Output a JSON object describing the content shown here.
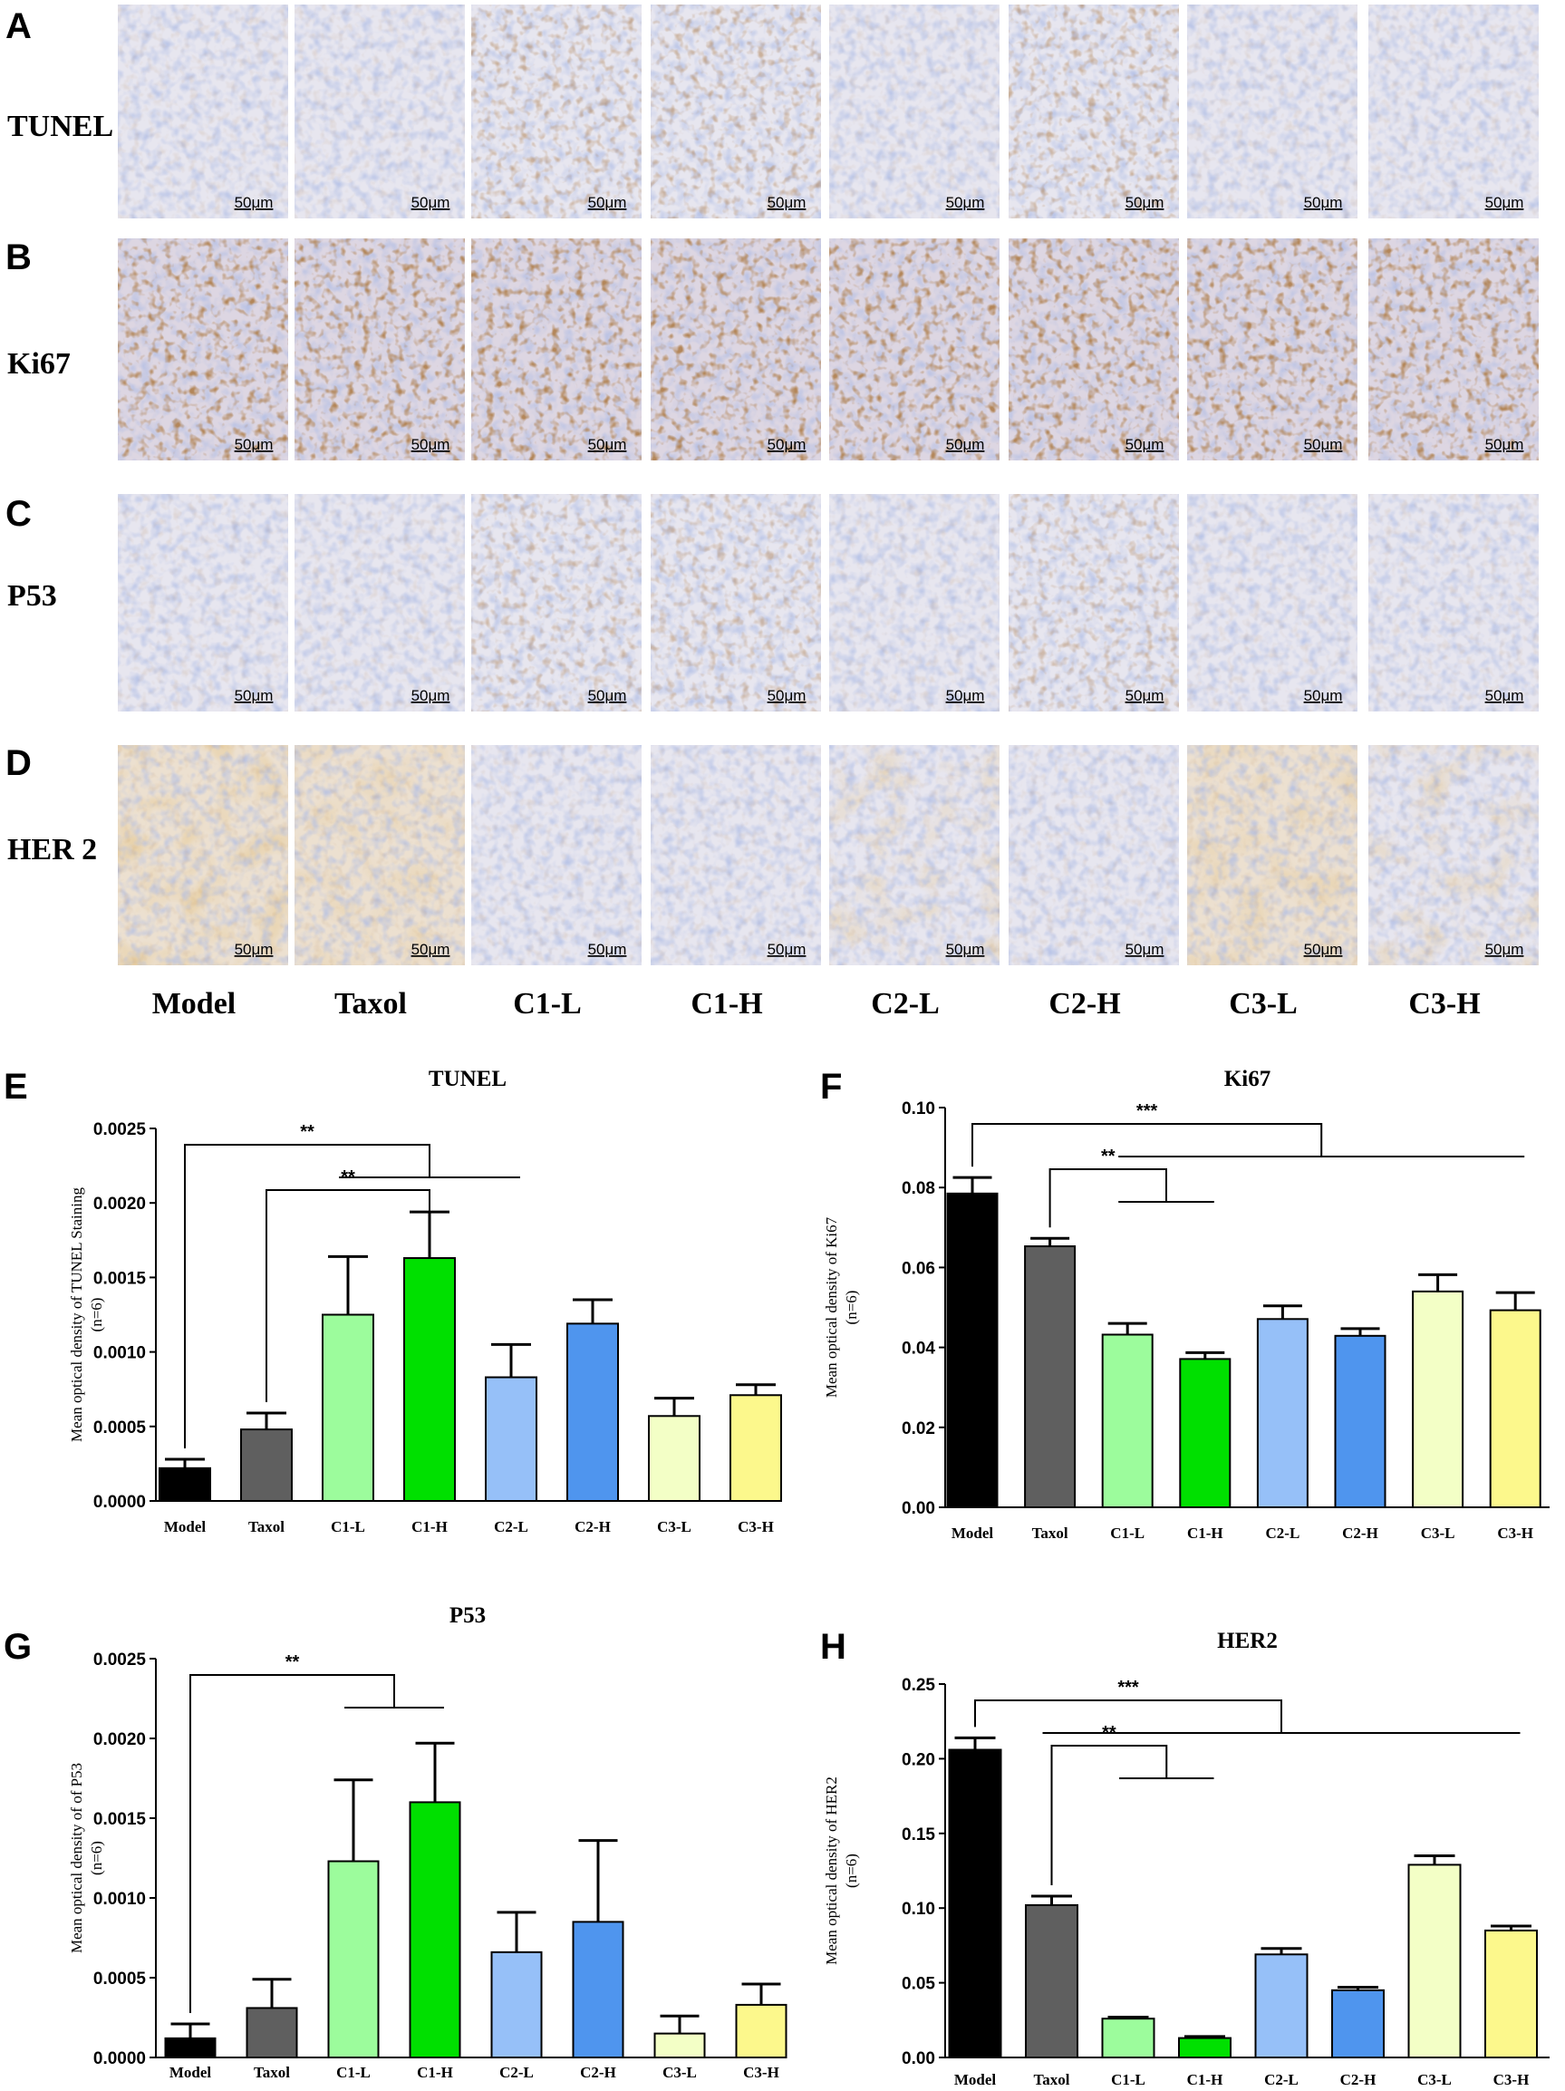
{
  "figure_panels": {
    "image_rows": [
      {
        "letter": "A",
        "stain": "TUNEL",
        "tint": "tunel"
      },
      {
        "letter": "B",
        "stain": "Ki67",
        "tint": "ki67"
      },
      {
        "letter": "C",
        "stain": "P53",
        "tint": "p53"
      },
      {
        "letter": "D",
        "stain": "HER 2",
        "tint": "her2"
      }
    ],
    "scale_bar_text": "50μm",
    "group_labels": [
      "Model",
      "Taxol",
      "C1-L",
      "C1-H",
      "C2-L",
      "C2-H",
      "C3-L",
      "C3-H"
    ]
  },
  "chart_data": [
    {
      "letter": "E",
      "type": "bar",
      "title": "TUNEL",
      "ylabel_lines": [
        "Mean optical density of TUNEL Staining",
        "(n=6)"
      ],
      "categories": [
        "Model",
        "Taxol",
        "C1-L",
        "C1-H",
        "C2-L",
        "C2-H",
        "C3-L",
        "C3-H"
      ],
      "values": [
        0.00022,
        0.00048,
        0.00125,
        0.00163,
        0.00083,
        0.00119,
        0.00057,
        0.00071
      ],
      "errors": [
        6e-05,
        0.00011,
        0.00039,
        0.00031,
        0.00022,
        0.00016,
        0.00012,
        7e-05
      ],
      "ylim": [
        0,
        0.0025
      ],
      "yticks": [
        "0.0000",
        "0.0005",
        "0.0010",
        "0.0015",
        "0.0020",
        "0.0025"
      ],
      "significance": [
        {
          "label": "**",
          "from": 0,
          "to_group": [
            2,
            4
          ]
        },
        {
          "label": "**",
          "from": 1,
          "to_group": [
            3,
            3
          ]
        }
      ]
    },
    {
      "letter": "F",
      "type": "bar",
      "title": "Ki67",
      "ylabel_lines": [
        "Mean optical density of Ki67",
        "(n=6)"
      ],
      "categories": [
        "Model",
        "Taxol",
        "C1-L",
        "C1-H",
        "C2-L",
        "C2-H",
        "C3-L",
        "C3-H"
      ],
      "values": [
        0.0785,
        0.0653,
        0.0432,
        0.0371,
        0.0471,
        0.0429,
        0.054,
        0.0493
      ],
      "errors": [
        0.004,
        0.002,
        0.0028,
        0.0016,
        0.0033,
        0.0018,
        0.0042,
        0.0044
      ],
      "ylim": [
        0,
        0.1
      ],
      "yticks": [
        "0.00",
        "0.02",
        "0.04",
        "0.06",
        "0.08",
        "0.10"
      ],
      "significance": [
        {
          "label": "***",
          "from": 0,
          "to_group": [
            2,
            7
          ]
        },
        {
          "label": "**",
          "from": 1,
          "to_group": [
            2,
            3
          ]
        }
      ]
    },
    {
      "letter": "G",
      "type": "bar",
      "title": "P53",
      "ylabel_lines": [
        "Mean optical density of of P53",
        "(n=6)"
      ],
      "categories": [
        "Model",
        "Taxol",
        "C1-L",
        "C1-H",
        "C2-L",
        "C2-H",
        "C3-L",
        "C3-H"
      ],
      "values": [
        0.00012,
        0.00031,
        0.00123,
        0.0016,
        0.00066,
        0.00085,
        0.00015,
        0.00033
      ],
      "errors": [
        9e-05,
        0.00018,
        0.00051,
        0.00037,
        0.00025,
        0.00051,
        0.00011,
        0.00013
      ],
      "ylim": [
        0,
        0.0025
      ],
      "yticks": [
        "0.0000",
        "0.0005",
        "0.0010",
        "0.0015",
        "0.0020",
        "0.0025"
      ],
      "significance": [
        {
          "label": "**",
          "from": 0,
          "to_group": [
            2,
            3
          ]
        }
      ]
    },
    {
      "letter": "H",
      "type": "bar",
      "title": "HER2",
      "ylabel_lines": [
        "Mean optical density of HER2",
        "(n=6)"
      ],
      "categories": [
        "Model",
        "Taxol",
        "C1-L",
        "C1-H",
        "C2-L",
        "C2-H",
        "C3-L",
        "C3-H"
      ],
      "values": [
        0.206,
        0.102,
        0.026,
        0.013,
        0.069,
        0.045,
        0.129,
        0.085
      ],
      "errors": [
        0.008,
        0.006,
        0.001,
        0.001,
        0.004,
        0.002,
        0.006,
        0.003
      ],
      "ylim": [
        0,
        0.25
      ],
      "yticks": [
        "0.00",
        "0.05",
        "0.10",
        "0.15",
        "0.20",
        "0.25"
      ],
      "significance": [
        {
          "label": "***",
          "from": 0,
          "to_group": [
            1,
            7
          ]
        },
        {
          "label": "**",
          "from": 1,
          "to_group": [
            2,
            3
          ]
        }
      ]
    }
  ],
  "colors": {
    "bars": [
      "#000000",
      "#5f5f5f",
      "#9cfc9c",
      "#00e000",
      "#96c0f8",
      "#4f95ee",
      "#f3ffc6",
      "#fcf88c"
    ],
    "stain_brown": "#8a4a1e",
    "stain_blue": "#6d82c4",
    "tissue_bg": "#e6e3ee"
  }
}
